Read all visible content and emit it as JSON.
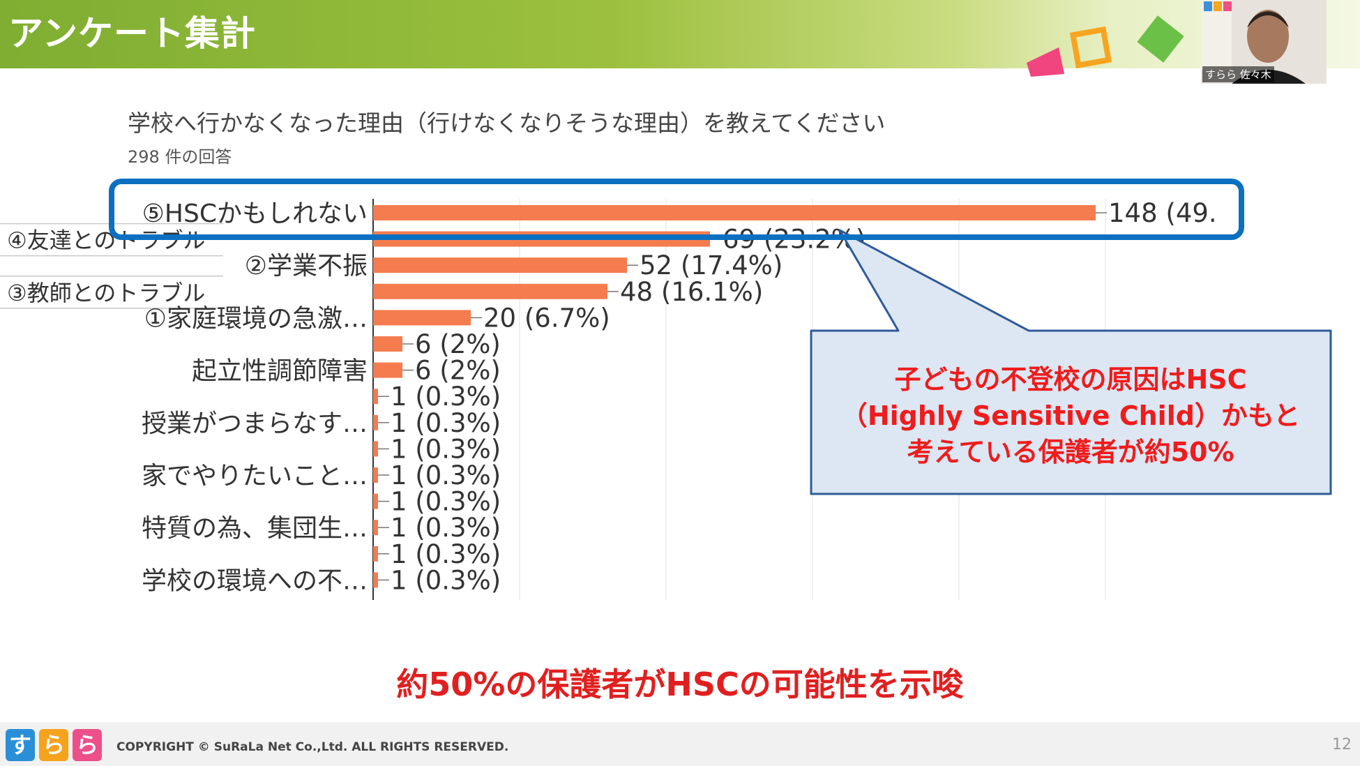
{
  "slide": {
    "title": "アンケート集計",
    "page_number": "12",
    "copyright": "COPYRIGHT © SuRaLa Net Co.,Ltd. ALL RIGHTS RESERVED.",
    "logo_chars": [
      "す",
      "ら",
      "ら"
    ],
    "takeaway": "約50%の保護者がHSCの可能性を示唆"
  },
  "webcam": {
    "label": "すらら 佐々木"
  },
  "survey": {
    "question": "学校へ行かなくなった理由（行けなくなりそうな理由）を教えてください",
    "response_count": "298 件の回答"
  },
  "callout": {
    "lines": [
      "子どもの不登校の原因はHSC",
      "（Highly Sensitive Child）かもと",
      "考えている保護者が約50%"
    ]
  },
  "colors": {
    "bar": "#f47c4e",
    "header_green": "#8ab536",
    "highlight_blue": "#0b70c1",
    "callout_fill": "#dce7f3",
    "callout_text": "#ee1c1c"
  },
  "chart_data": {
    "type": "bar",
    "orientation": "horizontal",
    "categories": [
      "⑤HSCかもしれない",
      "④友達とのトラブル",
      "②学業不振",
      "③教師とのトラブル",
      "①家庭環境の急激…",
      "",
      "起立性調節障害",
      "",
      "授業がつまらなす…",
      "",
      "家でやりたいこと…",
      "",
      "特質の為、集団生…",
      "",
      "学校の環境への不…"
    ],
    "values": [
      148,
      69,
      52,
      48,
      20,
      6,
      6,
      1,
      1,
      1,
      1,
      1,
      1,
      1,
      1
    ],
    "data_labels": [
      "148 (49.",
      "69 (23.2%)",
      "52 (17.4%)",
      "48 (16.1%)",
      "20 (6.7%)",
      "6 (2%)",
      "6 (2%)",
      "1 (0.3%)",
      "1 (0.3%)",
      "1 (0.3%)",
      "1 (0.3%)",
      "1 (0.3%)",
      "1 (0.3%)",
      "1 (0.3%)",
      "1 (0.3%)"
    ],
    "xlim": [
      0,
      150
    ],
    "grid": true
  }
}
